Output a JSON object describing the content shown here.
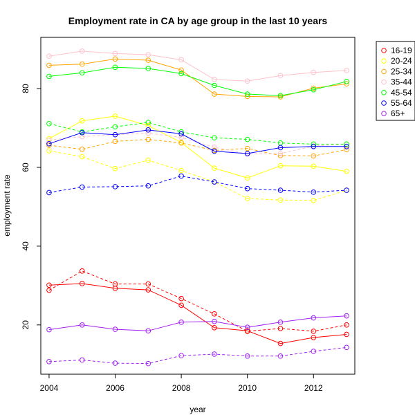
{
  "chart_data": {
    "type": "line",
    "title": "Employment rate in CA by age group in the last 10 years",
    "xlabel": "year",
    "ylabel": "employment rate",
    "xlim": [
      2003.75,
      2013.25
    ],
    "ylim": [
      7.5,
      93
    ],
    "x_ticks": [
      2004,
      2006,
      2008,
      2010,
      2012
    ],
    "y_ticks": [
      20,
      40,
      60,
      80
    ],
    "grid": false,
    "legend_position": "top-right",
    "x": [
      2004,
      2005,
      2006,
      2007,
      2008,
      2009,
      2010,
      2011,
      2012,
      2013
    ],
    "series": [
      {
        "name": "16-19",
        "color": "#ff0000",
        "style": "solid",
        "values": [
          30.1,
          30.5,
          29.3,
          28.9,
          25.0,
          19.3,
          18.5,
          15.3,
          16.8,
          17.6
        ]
      },
      {
        "name": "16-19",
        "color": "#ff0000",
        "style": "dashed",
        "values": [
          28.8,
          33.7,
          30.4,
          30.4,
          26.7,
          22.8,
          18.4,
          19.1,
          18.4,
          20.0
        ]
      },
      {
        "name": "20-24",
        "color": "#ffff00",
        "style": "solid",
        "values": [
          67.3,
          71.8,
          73.0,
          70.6,
          66.3,
          59.8,
          57.3,
          60.4,
          60.3,
          59.0
        ]
      },
      {
        "name": "20-24",
        "color": "#ffff00",
        "style": "dashed",
        "values": [
          64.2,
          62.7,
          59.7,
          61.8,
          59.2,
          56.3,
          52.1,
          51.7,
          51.6,
          54.2
        ]
      },
      {
        "name": "25-34",
        "color": "#ffa500",
        "style": "solid",
        "values": [
          85.9,
          86.2,
          87.5,
          87.2,
          84.7,
          78.6,
          78.0,
          77.9,
          80.1,
          81.2
        ]
      },
      {
        "name": "25-34",
        "color": "#ffa500",
        "style": "dashed",
        "values": [
          65.6,
          64.6,
          66.6,
          67.1,
          66.2,
          64.3,
          64.8,
          63.0,
          62.9,
          64.5
        ]
      },
      {
        "name": "35-44",
        "color": "#ffc0cb",
        "style": "solid",
        "values": [
          88.2,
          89.5,
          88.9,
          88.6,
          87.3,
          82.3,
          81.9,
          83.3,
          84.1,
          84.6
        ]
      },
      {
        "name": "35-44",
        "color": "#ffc0cb",
        "style": "dashed",
        "values": [
          66.9,
          67.8,
          68.3,
          68.7,
          67.6,
          65.1,
          63.4,
          63.5,
          65.4,
          65.9
        ]
      },
      {
        "name": "45-54",
        "color": "#00ff00",
        "style": "solid",
        "values": [
          83.1,
          84.0,
          85.4,
          85.1,
          83.8,
          80.8,
          78.6,
          78.2,
          79.7,
          81.8
        ]
      },
      {
        "name": "45-54",
        "color": "#00ff00",
        "style": "dashed",
        "values": [
          71.1,
          69.0,
          70.3,
          71.4,
          69.0,
          67.5,
          67.1,
          66.2,
          65.9,
          65.9
        ]
      },
      {
        "name": "55-64",
        "color": "#0000ff",
        "style": "solid",
        "values": [
          66.0,
          68.8,
          68.3,
          69.5,
          68.5,
          64.1,
          63.5,
          65.0,
          65.3,
          65.3
        ]
      },
      {
        "name": "55-64",
        "color": "#0000ff",
        "style": "dashed",
        "values": [
          53.6,
          55.0,
          55.1,
          55.3,
          57.8,
          56.3,
          54.6,
          54.2,
          53.7,
          54.2
        ]
      },
      {
        "name": "65+",
        "color": "#a020f0",
        "style": "solid",
        "values": [
          18.8,
          20.0,
          18.9,
          18.5,
          20.7,
          20.9,
          19.4,
          20.7,
          21.8,
          22.3
        ]
      },
      {
        "name": "65+",
        "color": "#a020f0",
        "style": "dashed",
        "values": [
          10.7,
          11.1,
          10.3,
          10.2,
          12.2,
          12.6,
          12.1,
          12.1,
          13.3,
          14.3
        ]
      }
    ],
    "legend": [
      {
        "label": "16-19",
        "color": "#ff0000"
      },
      {
        "label": "20-24",
        "color": "#ffff00"
      },
      {
        "label": "25-34",
        "color": "#ffa500"
      },
      {
        "label": "35-44",
        "color": "#ffc0cb"
      },
      {
        "label": "45-54",
        "color": "#00ff00"
      },
      {
        "label": "55-64",
        "color": "#0000ff"
      },
      {
        "label": "65+",
        "color": "#a020f0"
      }
    ]
  }
}
